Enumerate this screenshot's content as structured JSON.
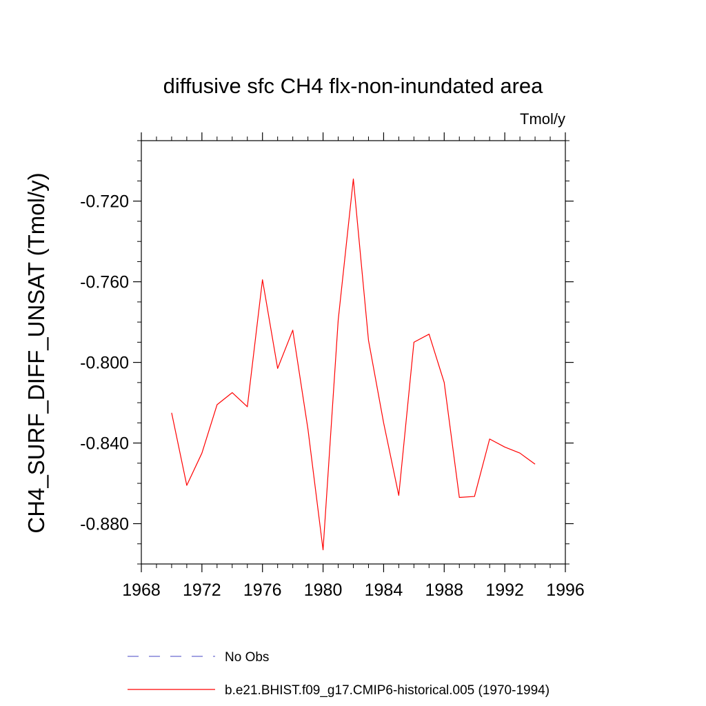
{
  "chart_data": {
    "type": "line",
    "title": "diffusive sfc CH4 flx-non-inundated area",
    "units": "Tmol/y",
    "ylabel": "CH4_SURF_DIFF_UNSAT  (Tmol/y)",
    "xlabel": "",
    "xlim": [
      1968,
      1996
    ],
    "ylim": [
      -0.9,
      -0.69
    ],
    "xticks": [
      1968,
      1972,
      1976,
      1980,
      1984,
      1988,
      1992,
      1996
    ],
    "xtick_labels": [
      "1968",
      "1972",
      "1976",
      "1980",
      "1984",
      "1988",
      "1992",
      "1996"
    ],
    "yticks": [
      -0.72,
      -0.76,
      -0.8,
      -0.84,
      -0.88
    ],
    "ytick_labels": [
      "-0.720",
      "-0.760",
      "-0.800",
      "-0.840",
      "-0.880"
    ],
    "x_minor_step": 1,
    "y_minor_step": 0.01,
    "grid": false,
    "series": [
      {
        "name": "b.e21.BHIST.f09_g17.CMIP6-historical.005 (1970-1994)",
        "color": "#ff0000",
        "style": "solid",
        "x": [
          1970,
          1971,
          1972,
          1973,
          1974,
          1975,
          1976,
          1977,
          1978,
          1979,
          1980,
          1981,
          1982,
          1983,
          1984,
          1985,
          1986,
          1987,
          1988,
          1989,
          1990,
          1991,
          1992,
          1993,
          1994
        ],
        "y": [
          -0.825,
          -0.861,
          -0.845,
          -0.821,
          -0.815,
          -0.822,
          -0.759,
          -0.803,
          -0.784,
          -0.833,
          -0.893,
          -0.779,
          -0.709,
          -0.789,
          -0.83,
          -0.866,
          -0.79,
          -0.786,
          -0.81,
          -0.867,
          -0.8665,
          -0.838,
          -0.842,
          -0.845,
          -0.8505
        ]
      }
    ],
    "legend": [
      {
        "label": "No Obs",
        "color": "#6a6ad0",
        "style": "dashed"
      },
      {
        "label": "b.e21.BHIST.f09_g17.CMIP6-historical.005 (1970-1994)",
        "color": "#ff0000",
        "style": "solid"
      }
    ],
    "legend_position": "bottom"
  }
}
